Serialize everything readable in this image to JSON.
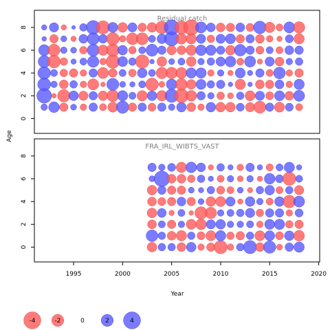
{
  "chart_data": {
    "type": "scatter",
    "xlabel": "Year",
    "ylabel": "Age",
    "xlim": [
      1991,
      2020.1
    ],
    "x_ticks": [
      1995,
      2000,
      2005,
      2010,
      2015,
      2020
    ],
    "size_legend": {
      "values": [
        -4,
        -2,
        0,
        2,
        4
      ],
      "labels": [
        "-4",
        "-2",
        "0",
        "2",
        "4"
      ]
    },
    "colors": {
      "negative": "#ff5a5a",
      "positive": "#5a5aff",
      "stroke_negative": "#e04848",
      "stroke_positive": "#4848e0",
      "axis": "#000000",
      "title": "#808080"
    },
    "panels": [
      {
        "title": "Residual catch",
        "ylim": [
          -1.3,
          9.5
        ],
        "y_ticks": [
          0,
          2,
          4,
          6,
          8
        ],
        "ages": [
          1,
          2,
          3,
          4,
          5,
          6,
          7,
          8
        ],
        "years": [
          1992,
          1993,
          1994,
          1995,
          1996,
          1997,
          1998,
          1999,
          2000,
          2001,
          2002,
          2003,
          2004,
          2005,
          2006,
          2007,
          2008,
          2009,
          2010,
          2011,
          2012,
          2013,
          2014,
          2015,
          2016,
          2017,
          2018
        ],
        "residuals": {
          "1": [
            0.6,
            1.6,
            -1.0,
            0.5,
            -0.6,
            1.0,
            -0.7,
            -1.4,
            2.1,
            -1.0,
            1.0,
            -0.9,
            1.0,
            0.6,
            1.3,
            -1.1,
            -0.6,
            1.3,
            -1.3,
            -1.3,
            0.9,
            -1.2,
            -2.0,
            1.0,
            -1.4,
            0.9,
            -0.7
          ],
          "2": [
            3.0,
            -0.3,
            -2.1,
            1.3,
            -1.2,
            1.0,
            -1.3,
            -1.9,
            1.5,
            0.7,
            -1.5,
            1.3,
            -1.5,
            2.4,
            -2.6,
            -1.6,
            1.0,
            0.6,
            -0.8,
            -0.5,
            0.8,
            -1.4,
            1.2,
            -0.9,
            1.4,
            -1.1,
            1.7
          ],
          "3": [
            2.3,
            0.6,
            -1.1,
            0.8,
            -0.6,
            -1.7,
            -0.3,
            2.0,
            0.5,
            0.4,
            0.7,
            -2.2,
            -0.5,
            1.6,
            -1.9,
            -1.3,
            1.4,
            0.8,
            1.0,
            0.3,
            -1.5,
            0.3,
            -1.1,
            -1.0,
            1.1,
            -0.6,
            1.5
          ],
          "4": [
            2.2,
            0.7,
            -0.8,
            -1.0,
            -0.6,
            1.0,
            -1.7,
            -1.0,
            0.7,
            -0.8,
            1.3,
            0.7,
            -1.8,
            -1.8,
            -1.7,
            1.5,
            1.5,
            -0.6,
            0.6,
            -0.4,
            1.4,
            0.4,
            1.0,
            -0.7,
            1.9,
            -0.6,
            -1.0
          ],
          "5": [
            2.0,
            -2.2,
            -0.8,
            0.4,
            0.7,
            1.8,
            -0.6,
            -2.5,
            1.4,
            0.8,
            -2.5,
            0.3,
            -1.3,
            0.5,
            0.7,
            -1.3,
            0.6,
            0.8,
            1.2,
            1.6,
            -0.7,
            1.7,
            -0.4,
            1.2,
            -1.1,
            0.6,
            0.8
          ],
          "6": [
            1.7,
            -2.0,
            0.6,
            0.5,
            -0.8,
            2.0,
            -1.5,
            -2.2,
            1.3,
            -0.8,
            0.7,
            2.0,
            1.0,
            -1.2,
            -1.1,
            -1.5,
            1.6,
            1.5,
            1.0,
            -1.3,
            1.9,
            1.0,
            -0.9,
            0.7,
            -0.7,
            1.1,
            1.0
          ],
          "7": [
            0.3,
            -1.0,
            0.5,
            -0.4,
            1.1,
            2.0,
            1.1,
            -2.2,
            -0.6,
            -1.9,
            -2.0,
            0.7,
            1.3,
            2.8,
            -1.6,
            -1.5,
            1.2,
            -0.8,
            1.2,
            1.4,
            -1.0,
            1.0,
            -1.1,
            -0.6,
            -0.4,
            0.9,
            -1.5
          ],
          "8": [
            0.4,
            1.2,
            -0.4,
            0.2,
            0.8,
            2.6,
            -2.4,
            1.4,
            -1.3,
            1.2,
            -1.0,
            -1.3,
            -2.2,
            3.1,
            -2.4,
            -3.2,
            1.7,
            1.1,
            -1.1,
            -1.0,
            1.1,
            -0.9,
            2.2,
            -1.5,
            -0.7,
            1.7,
            -1.8
          ]
        }
      },
      {
        "title": "FRA_IRL_WIBTS_VAST",
        "ylim": [
          -1.3,
          9.5
        ],
        "y_ticks": [
          0,
          2,
          4,
          6,
          8
        ],
        "ages": [
          0,
          1,
          2,
          3,
          4,
          5,
          6,
          7
        ],
        "years": [
          2003,
          2004,
          2005,
          2006,
          2007,
          2008,
          2009,
          2010,
          2011,
          2012,
          2013,
          2014,
          2015,
          2016,
          2017,
          2018
        ],
        "residuals": {
          "0": [
            -1.3,
            0.8,
            0.8,
            -1.1,
            1.3,
            -0.6,
            -1.0,
            -2.4,
            -0.6,
            0.8,
            2.4,
            -1.1,
            2.1,
            -0.5,
            1.0,
            1.5
          ],
          "1": [
            1.9,
            0.8,
            -1.1,
            -1.5,
            0.8,
            -0.9,
            -1.4,
            1.5,
            -0.8,
            -1.0,
            0.8,
            -1.4,
            1.4,
            -0.9,
            1.3,
            -1.6
          ],
          "2": [
            -1.1,
            0.7,
            -1.0,
            0.6,
            -1.4,
            -1.6,
            1.2,
            1.3,
            0.6,
            0.6,
            0.7,
            -0.6,
            1.4,
            1.5,
            -0.8,
            -1.0
          ],
          "3": [
            -1.3,
            1.1,
            -0.4,
            0.7,
            -0.3,
            -2.1,
            -1.8,
            0.6,
            0.7,
            0.8,
            1.2,
            -0.8,
            1.0,
            1.0,
            -0.6,
            0.9
          ],
          "4": [
            -1.1,
            -0.9,
            -1.0,
            1.1,
            -1.0,
            0.5,
            -1.3,
            -1.4,
            1.2,
            -0.4,
            1.3,
            0.6,
            -0.7,
            1.3,
            -2.2,
            1.7
          ],
          "5": [
            -1.3,
            1.0,
            -1.0,
            -1.0,
            0.5,
            0.4,
            0.8,
            -0.9,
            -0.7,
            0.5,
            -0.4,
            0.8,
            1.3,
            -0.7,
            0.8,
            -1.2
          ],
          "6": [
            0.5,
            3.3,
            -1.1,
            -1.1,
            -0.8,
            0.8,
            0.4,
            -0.7,
            0.6,
            -0.5,
            0.6,
            -0.4,
            1.6,
            0.9,
            -2.4,
            0.7
          ],
          "7": [
            1.0,
            0.6,
            0.9,
            -1.5,
            1.6,
            1.1,
            -0.4,
            0.8,
            0.4,
            -0.6,
            1.0,
            0.4,
            -0.7,
            0.7,
            1.5,
            0.4
          ]
        }
      }
    ]
  }
}
